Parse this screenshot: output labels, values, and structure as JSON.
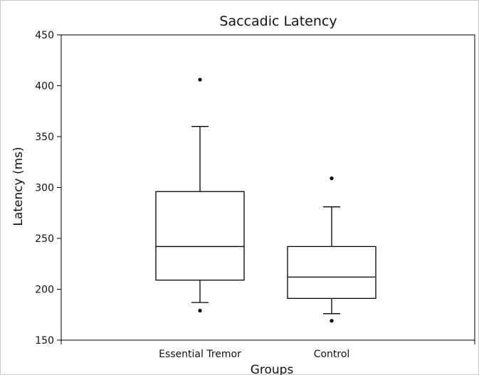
{
  "chart_data": {
    "type": "box",
    "title": "Saccadic Latency",
    "xlabel": "Groups",
    "ylabel": "Latency (ms)",
    "ylim": [
      150,
      450
    ],
    "yticks": [
      150,
      200,
      250,
      300,
      350,
      400,
      450
    ],
    "categories": [
      "Essential Tremor",
      "Control"
    ],
    "boxes": [
      {
        "category": "Essential Tremor",
        "whisker_low": 187,
        "q1": 209,
        "median": 242,
        "q3": 296,
        "whisker_high": 360,
        "outliers": [
          406,
          179
        ]
      },
      {
        "category": "Control",
        "whisker_low": 176,
        "q1": 191,
        "median": 212,
        "q3": 242,
        "whisker_high": 281,
        "outliers": [
          309,
          169
        ]
      }
    ],
    "grid": false,
    "legend": "none"
  }
}
